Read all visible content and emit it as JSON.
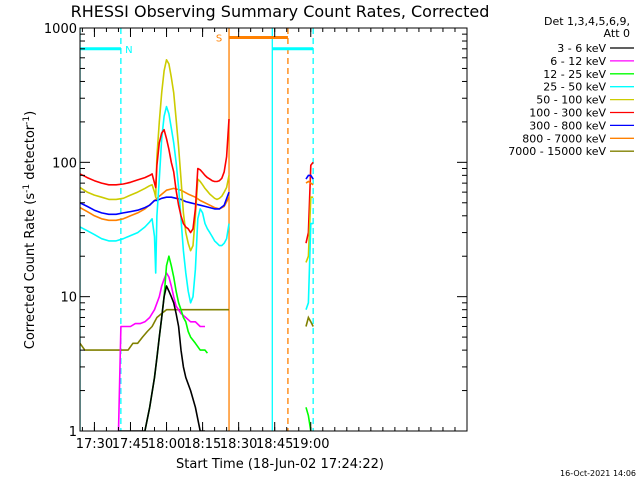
{
  "chart_data": {
    "type": "line",
    "title": "RHESSI Observing Summary Count Rates, Corrected",
    "xlabel": "Start Time (18-Jun-02 17:24:22)",
    "ylabel_parts": [
      "Corrected Count Rate (s",
      "-1",
      " detector",
      "-1",
      ")"
    ],
    "ylog": true,
    "ylim": [
      1,
      1000
    ],
    "xlim_min": [
      1044,
      1205
    ],
    "x_ticks": [
      {
        "m": 1050,
        "label": "17:30"
      },
      {
        "m": 1065,
        "label": "17:45"
      },
      {
        "m": 1080,
        "label": "18:00"
      },
      {
        "m": 1095,
        "label": "18:15"
      },
      {
        "m": 1110,
        "label": "18:30"
      },
      {
        "m": 1125,
        "label": "18:45"
      },
      {
        "m": 1140,
        "label": "19:00"
      }
    ],
    "y_ticks": [
      {
        "v": 1,
        "label": "1"
      },
      {
        "v": 10,
        "label": "10"
      },
      {
        "v": 100,
        "label": "100"
      },
      {
        "v": 1000,
        "label": "1000"
      }
    ],
    "legend": {
      "position": "right",
      "header": [
        "Det 1,3,4,5,6,9,",
        "Att 0"
      ]
    },
    "series": [
      {
        "name": "3 - 6 keV",
        "color": "#000000",
        "x": [
          1060,
          1061,
          1063,
          1065,
          1067,
          1069.5,
          1071,
          1073,
          1075,
          1076,
          1077,
          1078,
          1079,
          1080,
          1081,
          1082,
          1083,
          1084,
          1085,
          1086,
          1087,
          1088,
          1090,
          1092,
          1094,
          1096
        ],
        "y": [
          1,
          1,
          1,
          1,
          1,
          1,
          1,
          1.5,
          2.5,
          3.5,
          5,
          7,
          10,
          12,
          11,
          10,
          9,
          7.5,
          6,
          4,
          3,
          2.5,
          2,
          1.5,
          1,
          1
        ]
      },
      {
        "name": "6 - 12 keV",
        "color": "#ff00ff",
        "x": [
          1060,
          1061,
          1063,
          1065,
          1067,
          1069,
          1071,
          1073,
          1075,
          1077,
          1078,
          1079,
          1080,
          1081,
          1082,
          1083,
          1084,
          1086,
          1088,
          1090,
          1092,
          1094,
          1096
        ],
        "y": [
          1,
          6,
          6,
          6,
          6.3,
          6.3,
          6.5,
          7,
          8,
          10,
          12,
          13.5,
          15,
          14,
          12,
          10,
          8.5,
          7.5,
          7,
          6.5,
          6.5,
          6,
          6
        ]
      },
      {
        "name": "12 - 25 keV",
        "color": "#00ff00",
        "x": [
          1071,
          1073,
          1075,
          1076,
          1077,
          1078,
          1079,
          1080,
          1081,
          1082,
          1083,
          1084,
          1085,
          1086,
          1087,
          1088,
          1089,
          1090,
          1092,
          1094,
          1096,
          1097
        ],
        "y": [
          1,
          1.5,
          2.5,
          3.5,
          5,
          7,
          10,
          17,
          20,
          17,
          14,
          11,
          9,
          8,
          7,
          6.5,
          5.5,
          5,
          4.5,
          4,
          4,
          3.8
        ]
      },
      {
        "name": "25 - 50 keV",
        "color": "#00ffff",
        "x": [
          1044,
          1047,
          1050,
          1053,
          1056,
          1059,
          1062,
          1065,
          1068,
          1071,
          1073,
          1074,
          1075,
          1075.5,
          1076,
          1077,
          1078,
          1079,
          1080,
          1081,
          1082,
          1083,
          1084,
          1085,
          1086,
          1087,
          1088,
          1089,
          1090,
          1091,
          1092,
          1093,
          1094,
          1095,
          1096,
          1097,
          1098,
          1099,
          1100,
          1101,
          1102,
          1103,
          1104,
          1105,
          1106
        ],
        "y": [
          33,
          31,
          29,
          27,
          26,
          26,
          27,
          28.5,
          30,
          33,
          36,
          38,
          28,
          15,
          40,
          75,
          150,
          220,
          260,
          230,
          180,
          140,
          100,
          65,
          38,
          22,
          15,
          11,
          9,
          10,
          16,
          38,
          45,
          42,
          35,
          32,
          30,
          28,
          26,
          25,
          24,
          24,
          25,
          27,
          35
        ]
      },
      {
        "name": "50 - 100 keV",
        "color": "#cccc00",
        "x": [
          1044,
          1047,
          1050,
          1053,
          1056,
          1059,
          1062,
          1065,
          1068,
          1071,
          1073,
          1074,
          1075,
          1075.5,
          1076,
          1077,
          1078,
          1079,
          1080,
          1081,
          1082,
          1083,
          1084,
          1085,
          1086,
          1087,
          1088,
          1089,
          1090,
          1091,
          1092,
          1093,
          1094,
          1095,
          1096,
          1097,
          1098,
          1099,
          1100,
          1101,
          1102,
          1103,
          1104,
          1105,
          1106
        ],
        "y": [
          65,
          60,
          57,
          55,
          53,
          53,
          54,
          57,
          60,
          64,
          67,
          68,
          60,
          55,
          110,
          200,
          330,
          480,
          580,
          540,
          430,
          330,
          210,
          130,
          75,
          42,
          30,
          25,
          22,
          24,
          40,
          75,
          72,
          68,
          64,
          61,
          58,
          56,
          54,
          53,
          54,
          56,
          60,
          65,
          80
        ]
      },
      {
        "name": "100 - 300 keV",
        "color": "#ff0000",
        "x": [
          1044,
          1047,
          1050,
          1053,
          1056,
          1059,
          1062,
          1065,
          1068,
          1071,
          1073,
          1074,
          1075,
          1075.5,
          1076,
          1077,
          1078,
          1079,
          1080,
          1081,
          1082,
          1083,
          1084,
          1085,
          1086,
          1087,
          1088,
          1089,
          1090,
          1091,
          1092,
          1093,
          1094,
          1095,
          1096,
          1097,
          1098,
          1099,
          1100,
          1101,
          1102,
          1103,
          1104,
          1105,
          1106
        ],
        "y": [
          82,
          77,
          73,
          70,
          68,
          68,
          69,
          71,
          74,
          77,
          80,
          82,
          70,
          65,
          95,
          140,
          165,
          175,
          150,
          125,
          100,
          85,
          62,
          48,
          40,
          35,
          33,
          32,
          30,
          32,
          45,
          90,
          88,
          84,
          80,
          77,
          75,
          73,
          72,
          72,
          73,
          76,
          85,
          110,
          210
        ]
      },
      {
        "name": "300 - 800 keV",
        "color": "#0000ff",
        "x": [
          1044,
          1047,
          1050,
          1053,
          1056,
          1059,
          1062,
          1065,
          1068,
          1071,
          1073,
          1074,
          1075,
          1076,
          1078,
          1080,
          1082,
          1084,
          1086,
          1088,
          1090,
          1092,
          1094,
          1096,
          1098,
          1100,
          1102,
          1104,
          1106
        ],
        "y": [
          50,
          47,
          44,
          42,
          41,
          41,
          42,
          43,
          44,
          46,
          48,
          50,
          52,
          52,
          54,
          55,
          55,
          54,
          53,
          51,
          50,
          49,
          48,
          47,
          46,
          45,
          45,
          48,
          60
        ]
      },
      {
        "name": "800 - 7000 keV",
        "color": "#ff8000",
        "x": [
          1044,
          1047,
          1050,
          1053,
          1056,
          1059,
          1062,
          1065,
          1068,
          1071,
          1074,
          1077,
          1080,
          1083,
          1086,
          1089,
          1092,
          1094,
          1096,
          1098,
          1100,
          1102,
          1104,
          1106
        ],
        "y": [
          46,
          43,
          40,
          38,
          37,
          37,
          38,
          40,
          42,
          45,
          50,
          56,
          62,
          64,
          62,
          58,
          55,
          52,
          50,
          48,
          46,
          45,
          47,
          55
        ]
      },
      {
        "name": "7000 - 15000 keV",
        "color": "#808000",
        "x": [
          1044,
          1046,
          1048,
          1050,
          1052,
          1054,
          1056,
          1058,
          1060,
          1062,
          1064,
          1066,
          1068,
          1070,
          1072,
          1074,
          1076,
          1078,
          1080,
          1082,
          1084,
          1086,
          1088,
          1090,
          1092,
          1094,
          1096,
          1098,
          1100,
          1102,
          1104,
          1106
        ],
        "y": [
          4.5,
          4,
          4,
          4,
          4,
          4,
          4,
          4,
          4,
          4,
          4,
          4.5,
          4.5,
          5,
          5.5,
          6,
          7,
          7.5,
          8,
          8,
          8,
          8,
          8,
          8,
          8,
          8,
          8,
          8,
          8,
          8,
          8,
          8
        ]
      }
    ],
    "late_series": [
      {
        "series": "100 - 300 keV",
        "x": [
          1138,
          1139,
          1140,
          1141
        ],
        "y": [
          25,
          30,
          95,
          100
        ]
      },
      {
        "series": "300 - 800 keV",
        "x": [
          1138,
          1139,
          1140,
          1141
        ],
        "y": [
          75,
          80,
          80,
          75
        ]
      },
      {
        "series": "800 - 7000 keV",
        "x": [
          1138,
          1139,
          1140,
          1141
        ],
        "y": [
          70,
          72,
          70,
          68
        ]
      },
      {
        "series": "50 - 100 keV",
        "x": [
          1138,
          1139,
          1140,
          1141
        ],
        "y": [
          18,
          20,
          55,
          55
        ]
      },
      {
        "series": "25 - 50 keV",
        "x": [
          1138,
          1139,
          1140,
          1141
        ],
        "y": [
          8,
          9,
          35,
          35
        ]
      },
      {
        "series": "7000 - 15000 keV",
        "x": [
          1138,
          1139,
          1140,
          1141
        ],
        "y": [
          6,
          7,
          6.5,
          6
        ]
      },
      {
        "series": "12 - 25 keV",
        "x": [
          1138,
          1139,
          1140
        ],
        "y": [
          1.5,
          1.3,
          1
        ]
      }
    ],
    "annotations": [
      {
        "text": "N",
        "color": "#00ffff"
      },
      {
        "text": "S",
        "color": "#ff8000"
      }
    ],
    "flag_bars": [
      {
        "label": "N",
        "color": "#00ffff",
        "x": [
          1044,
          1061
        ],
        "y": 700
      },
      {
        "label": "N",
        "color": "#00ffff",
        "x": [
          1124,
          1141
        ],
        "y": 700
      },
      {
        "label": "S",
        "color": "#ff8000",
        "x": [
          1106,
          1130.5
        ],
        "y": 850
      }
    ],
    "vlines": [
      {
        "x": 1044,
        "color": "#00ffff",
        "style": "solid"
      },
      {
        "x": 1061,
        "color": "#00ffff",
        "style": "dashed"
      },
      {
        "x": 1106,
        "color": "#ff8000",
        "style": "solid"
      },
      {
        "x": 1124,
        "color": "#00ffff",
        "style": "solid"
      },
      {
        "x": 1130.5,
        "color": "#ff8000",
        "style": "dashed"
      },
      {
        "x": 1141,
        "color": "#00ffff",
        "style": "dashed"
      }
    ]
  },
  "footer": {
    "timestamp": "16-Oct-2021 14:06"
  }
}
